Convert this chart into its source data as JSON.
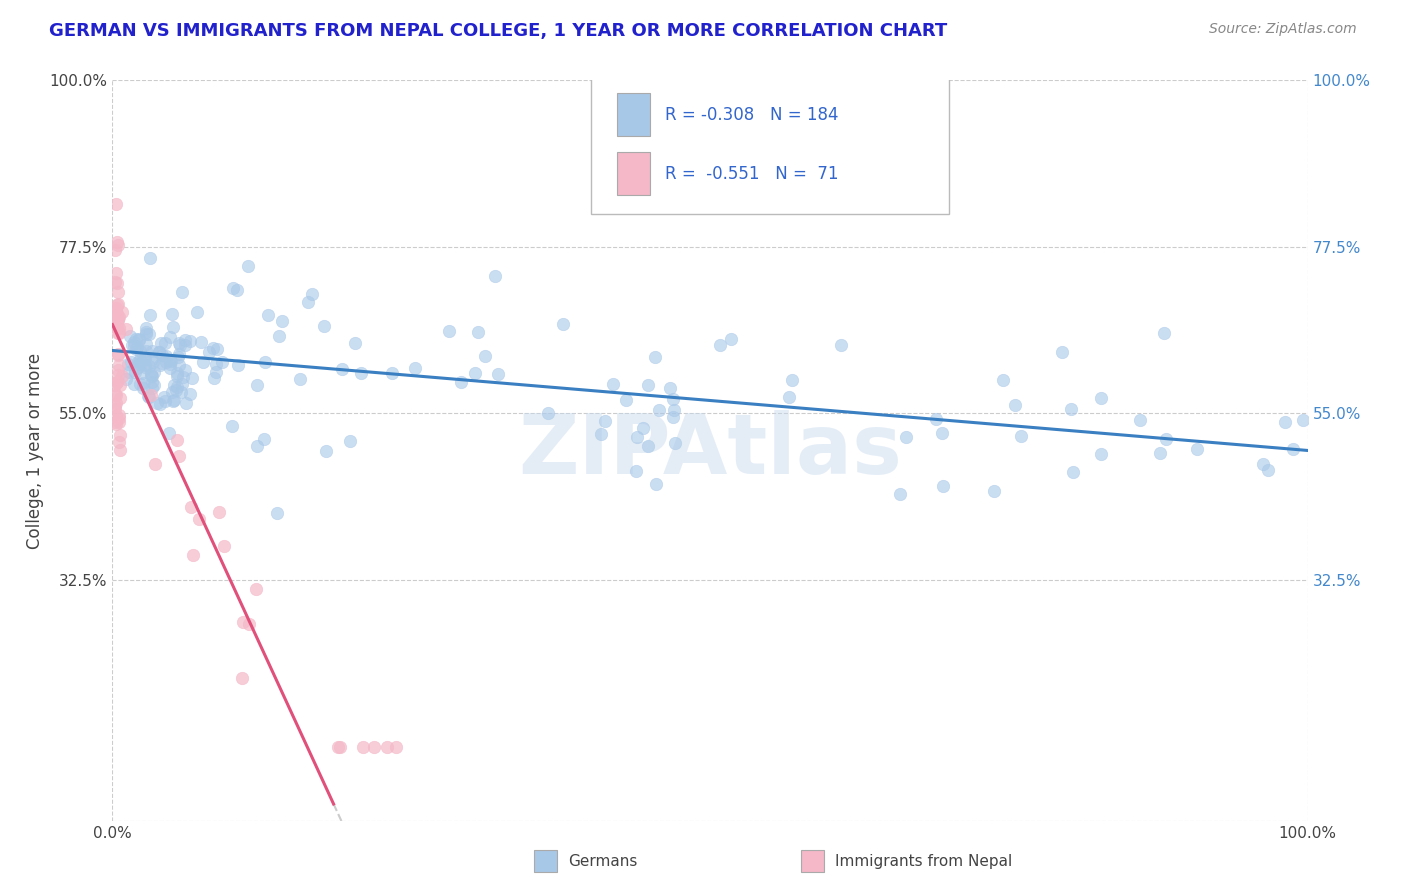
{
  "title": "GERMAN VS IMMIGRANTS FROM NEPAL COLLEGE, 1 YEAR OR MORE CORRELATION CHART",
  "source_text": "Source: ZipAtlas.com",
  "xlabel": "",
  "ylabel": "College, 1 year or more",
  "legend_labels": [
    "Germans",
    "Immigrants from Nepal"
  ],
  "r_blue": -0.308,
  "n_blue": 184,
  "r_pink": -0.551,
  "n_pink": 71,
  "xmin": 0.0,
  "xmax": 1.0,
  "ymin": 0.0,
  "ymax": 1.0,
  "x_tick_labels": [
    "0.0%",
    "100.0%"
  ],
  "y_tick_labels": [
    "",
    "32.5%",
    "55.0%",
    "77.5%",
    "100.0%"
  ],
  "y_tick_positions": [
    0.0,
    0.325,
    0.55,
    0.775,
    1.0
  ],
  "blue_scatter_color": "#a8c8e8",
  "pink_scatter_color": "#f4b8c8",
  "blue_line_color": "#3a7fc1",
  "pink_line_color": "#e0507a",
  "grid_color": "#cccccc",
  "watermark_text": "ZIPAtlas",
  "title_color": "#2222cc",
  "background_color": "#ffffff",
  "legend_r_color": "#3366cc"
}
